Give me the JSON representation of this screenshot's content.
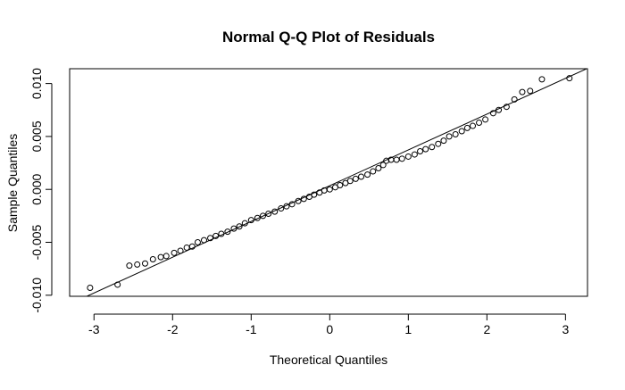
{
  "chart_data": {
    "type": "scatter",
    "title": "Normal Q-Q Plot of Residuals",
    "x_label": "Theoretical Quantiles",
    "y_label": "Sample Quantiles",
    "xlim": [
      -3.31,
      3.28
    ],
    "ylim": [
      -0.0101,
      0.0114
    ],
    "xticks": [
      -3,
      -2,
      -1,
      0,
      1,
      2,
      3
    ],
    "yticks": [
      {
        "value": -0.01,
        "label": "-0.010"
      },
      {
        "value": -0.005,
        "label": "-0.005"
      },
      {
        "value": 0,
        "label": "0.000"
      },
      {
        "value": 0.005,
        "label": "0.005"
      },
      {
        "value": 0.01,
        "label": "0.010"
      }
    ],
    "color": "#000000",
    "reference_line": {
      "intercept": 0.00035,
      "slope": 0.00338
    },
    "x": [
      -3.05,
      -2.7,
      -2.55,
      -2.45,
      -2.35,
      -2.25,
      -2.15,
      -2.08,
      -1.98,
      -1.9,
      -1.82,
      -1.75,
      -1.68,
      -1.6,
      -1.52,
      -1.45,
      -1.38,
      -1.3,
      -1.22,
      -1.15,
      -1.08,
      -1.0,
      -0.92,
      -0.85,
      -0.78,
      -0.7,
      -0.62,
      -0.55,
      -0.48,
      -0.4,
      -0.33,
      -0.26,
      -0.2,
      -0.13,
      -0.07,
      0,
      0.07,
      0.13,
      0.2,
      0.26,
      0.33,
      0.4,
      0.48,
      0.55,
      0.62,
      0.68,
      0.72,
      0.78,
      0.85,
      0.92,
      1.0,
      1.08,
      1.15,
      1.22,
      1.3,
      1.38,
      1.45,
      1.52,
      1.6,
      1.68,
      1.75,
      1.82,
      1.9,
      1.98,
      2.08,
      2.15,
      2.25,
      2.35,
      2.45,
      2.55,
      2.7,
      3.05
    ],
    "values": [
      -0.0093,
      -0.009,
      -0.0072,
      -0.0071,
      -0.007,
      -0.0066,
      -0.0064,
      -0.0063,
      -0.006,
      -0.0058,
      -0.0055,
      -0.0054,
      -0.005,
      -0.0048,
      -0.0046,
      -0.0044,
      -0.0042,
      -0.004,
      -0.0037,
      -0.0035,
      -0.0032,
      -0.0029,
      -0.0027,
      -0.0025,
      -0.0023,
      -0.0021,
      -0.0018,
      -0.0016,
      -0.0014,
      -0.0011,
      -0.0009,
      -0.0007,
      -0.0005,
      -0.0003,
      -0.0001,
      0,
      0.0002,
      0.0004,
      0.0006,
      0.0008,
      0.001,
      0.0012,
      0.0014,
      0.0017,
      0.002,
      0.0023,
      0.0027,
      0.0028,
      0.0028,
      0.0029,
      0.0031,
      0.0033,
      0.0036,
      0.0038,
      0.004,
      0.0043,
      0.0046,
      0.005,
      0.0052,
      0.0055,
      0.0058,
      0.006,
      0.0063,
      0.0066,
      0.0072,
      0.0075,
      0.0078,
      0.0085,
      0.0092,
      0.0093,
      0.0104,
      0.0105
    ]
  }
}
